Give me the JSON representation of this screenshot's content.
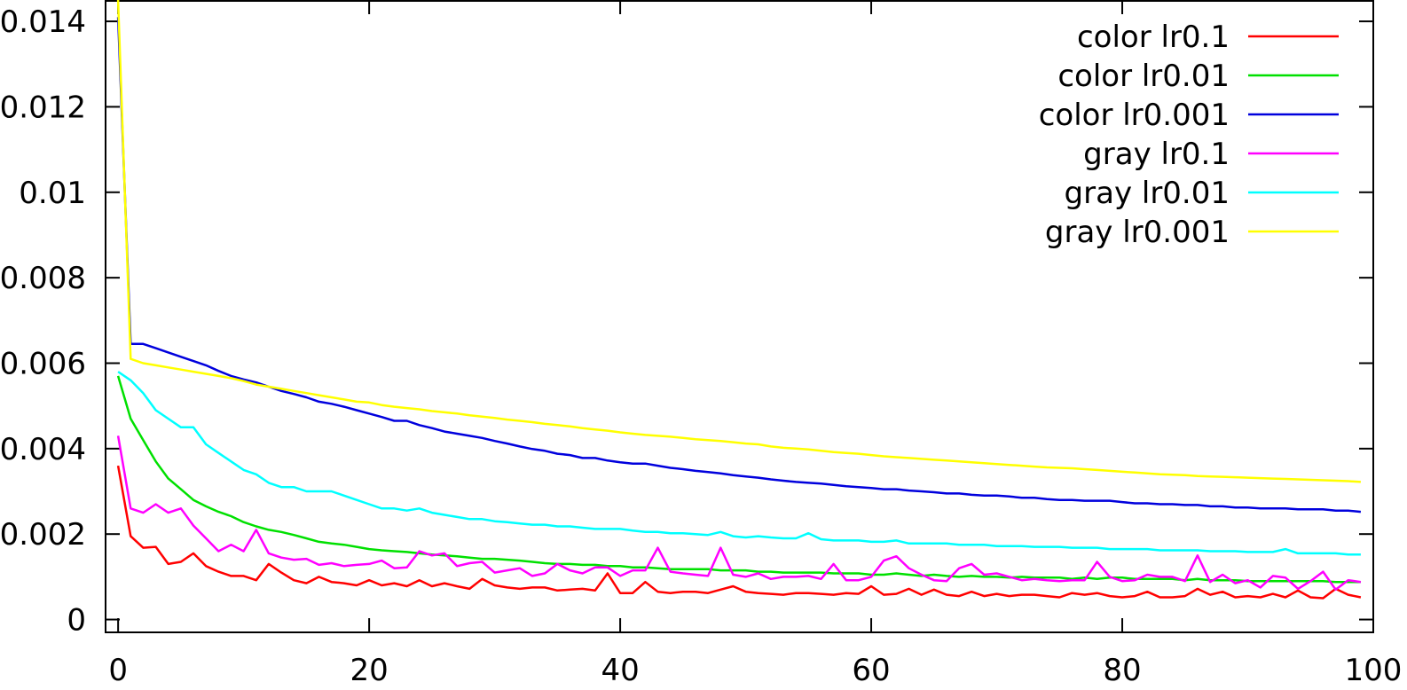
{
  "chart_data": {
    "type": "line",
    "xlim": [
      -1,
      100
    ],
    "ylim": [
      -0.0003,
      0.0145
    ],
    "xticks": [
      0,
      20,
      40,
      60,
      80,
      100
    ],
    "xtick_labels": [
      "0",
      "20",
      "40",
      "60",
      "80",
      "100"
    ],
    "yticks": [
      0,
      0.002,
      0.004,
      0.006,
      0.008,
      0.01,
      0.012,
      0.014
    ],
    "ytick_labels": [
      "0",
      "0.002",
      "0.004",
      "0.006",
      "0.008",
      "0.01",
      "0.012",
      "0.014"
    ],
    "grid": false,
    "legend_position": "top-right",
    "x": [
      0,
      1,
      2,
      3,
      4,
      5,
      6,
      7,
      8,
      9,
      10,
      11,
      12,
      13,
      14,
      15,
      16,
      17,
      18,
      19,
      20,
      21,
      22,
      23,
      24,
      25,
      26,
      27,
      28,
      29,
      30,
      31,
      32,
      33,
      34,
      35,
      36,
      37,
      38,
      39,
      40,
      41,
      42,
      43,
      44,
      45,
      46,
      47,
      48,
      49,
      50,
      51,
      52,
      53,
      54,
      55,
      56,
      57,
      58,
      59,
      60,
      61,
      62,
      63,
      64,
      65,
      66,
      67,
      68,
      69,
      70,
      71,
      72,
      73,
      74,
      75,
      76,
      77,
      78,
      79,
      80,
      81,
      82,
      83,
      84,
      85,
      86,
      87,
      88,
      89,
      90,
      91,
      92,
      93,
      94,
      95,
      96,
      97,
      98,
      99
    ],
    "series": [
      {
        "name": "color lr0.1",
        "color": "#ff0000",
        "values": [
          0.0036,
          0.00195,
          0.00168,
          0.0017,
          0.0013,
          0.00135,
          0.00155,
          0.00125,
          0.00112,
          0.00102,
          0.00102,
          0.00092,
          0.0013,
          0.0011,
          0.00092,
          0.00085,
          0.001,
          0.00088,
          0.00085,
          0.0008,
          0.00092,
          0.0008,
          0.00085,
          0.00078,
          0.00092,
          0.00078,
          0.00085,
          0.00078,
          0.00072,
          0.00095,
          0.0008,
          0.00075,
          0.00072,
          0.00075,
          0.00075,
          0.00068,
          0.0007,
          0.00072,
          0.00068,
          0.00108,
          0.00062,
          0.00062,
          0.00088,
          0.00065,
          0.00062,
          0.00065,
          0.00065,
          0.00062,
          0.0007,
          0.00078,
          0.00065,
          0.00062,
          0.0006,
          0.00058,
          0.00062,
          0.00062,
          0.0006,
          0.00058,
          0.00062,
          0.0006,
          0.00078,
          0.00058,
          0.0006,
          0.00072,
          0.00058,
          0.0007,
          0.00058,
          0.00055,
          0.00065,
          0.00055,
          0.0006,
          0.00055,
          0.00058,
          0.00058,
          0.00055,
          0.00052,
          0.00062,
          0.00058,
          0.00062,
          0.00055,
          0.00052,
          0.00055,
          0.00065,
          0.00052,
          0.00052,
          0.00055,
          0.00072,
          0.00058,
          0.00065,
          0.00052,
          0.00055,
          0.00052,
          0.0006,
          0.00052,
          0.00068,
          0.00052,
          0.0005,
          0.00072,
          0.00058,
          0.00052
        ]
      },
      {
        "name": "color lr0.01",
        "color": "#00e000",
        "values": [
          0.0057,
          0.0047,
          0.0042,
          0.0037,
          0.0033,
          0.00305,
          0.0028,
          0.00265,
          0.00252,
          0.00242,
          0.00228,
          0.00218,
          0.0021,
          0.00205,
          0.00198,
          0.0019,
          0.00182,
          0.00178,
          0.00175,
          0.0017,
          0.00165,
          0.00162,
          0.0016,
          0.00158,
          0.00155,
          0.00152,
          0.0015,
          0.00148,
          0.00145,
          0.00142,
          0.00142,
          0.0014,
          0.00138,
          0.00135,
          0.00132,
          0.0013,
          0.0013,
          0.00128,
          0.00128,
          0.00125,
          0.00125,
          0.00122,
          0.00122,
          0.0012,
          0.00118,
          0.00118,
          0.00118,
          0.00118,
          0.00115,
          0.00115,
          0.00115,
          0.00112,
          0.00112,
          0.0011,
          0.0011,
          0.0011,
          0.0011,
          0.00108,
          0.00108,
          0.00108,
          0.00105,
          0.00105,
          0.00108,
          0.00105,
          0.00102,
          0.00105,
          0.00102,
          0.001,
          0.00102,
          0.001,
          0.001,
          0.00098,
          0.001,
          0.00098,
          0.00098,
          0.00098,
          0.00095,
          0.00098,
          0.00095,
          0.00098,
          0.00098,
          0.00095,
          0.00095,
          0.00095,
          0.00095,
          0.00092,
          0.00095,
          0.00092,
          0.00092,
          0.00092,
          0.0009,
          0.0009,
          0.0009,
          0.0009,
          0.0009,
          0.0009,
          0.0009,
          0.00088,
          0.00088,
          0.00088
        ]
      },
      {
        "name": "color lr0.001",
        "color": "#0000dd",
        "values": [
          0.0141,
          0.00645,
          0.00645,
          0.00635,
          0.00625,
          0.00615,
          0.00605,
          0.00595,
          0.00582,
          0.0057,
          0.00562,
          0.00555,
          0.00545,
          0.00535,
          0.00528,
          0.0052,
          0.0051,
          0.00505,
          0.00498,
          0.0049,
          0.00482,
          0.00474,
          0.00465,
          0.00465,
          0.00455,
          0.00448,
          0.0044,
          0.00435,
          0.0043,
          0.00425,
          0.00418,
          0.00412,
          0.00405,
          0.00399,
          0.00395,
          0.00388,
          0.00385,
          0.00378,
          0.00378,
          0.00372,
          0.00368,
          0.00365,
          0.00365,
          0.0036,
          0.00355,
          0.00352,
          0.00348,
          0.00345,
          0.00342,
          0.00338,
          0.00335,
          0.00332,
          0.00328,
          0.00325,
          0.00322,
          0.0032,
          0.00318,
          0.00315,
          0.00312,
          0.0031,
          0.00308,
          0.00305,
          0.00305,
          0.00302,
          0.003,
          0.00298,
          0.00295,
          0.00295,
          0.00292,
          0.0029,
          0.0029,
          0.00288,
          0.00285,
          0.00285,
          0.00282,
          0.0028,
          0.0028,
          0.00278,
          0.00278,
          0.00278,
          0.00275,
          0.00272,
          0.00272,
          0.0027,
          0.0027,
          0.00268,
          0.00268,
          0.00265,
          0.00265,
          0.00262,
          0.00262,
          0.0026,
          0.0026,
          0.0026,
          0.00258,
          0.00258,
          0.00258,
          0.00255,
          0.00255,
          0.00252
        ]
      },
      {
        "name": "gray lr0.1",
        "color": "#ff00ff",
        "values": [
          0.0043,
          0.0026,
          0.0025,
          0.0027,
          0.0025,
          0.0026,
          0.0022,
          0.0019,
          0.0016,
          0.00175,
          0.0016,
          0.0021,
          0.00155,
          0.00145,
          0.0014,
          0.00142,
          0.00128,
          0.00132,
          0.00125,
          0.00128,
          0.0013,
          0.00138,
          0.0012,
          0.00122,
          0.0016,
          0.0015,
          0.00155,
          0.00125,
          0.00132,
          0.00135,
          0.0011,
          0.00115,
          0.0012,
          0.00102,
          0.00108,
          0.0013,
          0.00115,
          0.00108,
          0.00122,
          0.00122,
          0.00102,
          0.00115,
          0.00115,
          0.00168,
          0.00112,
          0.00108,
          0.00105,
          0.00102,
          0.00168,
          0.00105,
          0.001,
          0.00108,
          0.00095,
          0.001,
          0.001,
          0.00102,
          0.00095,
          0.0013,
          0.00092,
          0.00092,
          0.001,
          0.00138,
          0.00148,
          0.0012,
          0.00105,
          0.00092,
          0.0009,
          0.0012,
          0.0013,
          0.00105,
          0.00108,
          0.001,
          0.00092,
          0.00095,
          0.00092,
          0.0009,
          0.00092,
          0.00092,
          0.00135,
          0.001,
          0.0009,
          0.00092,
          0.00105,
          0.001,
          0.001,
          0.0009,
          0.0015,
          0.00088,
          0.00105,
          0.00085,
          0.00092,
          0.00075,
          0.00102,
          0.00098,
          0.00072,
          0.0009,
          0.00112,
          0.0007,
          0.00092,
          0.00088
        ]
      },
      {
        "name": "gray lr0.01",
        "color": "#00ffff",
        "values": [
          0.0058,
          0.0056,
          0.0053,
          0.0049,
          0.0047,
          0.0045,
          0.0045,
          0.0041,
          0.0039,
          0.0037,
          0.0035,
          0.0034,
          0.0032,
          0.0031,
          0.0031,
          0.003,
          0.003,
          0.003,
          0.0029,
          0.0028,
          0.0027,
          0.0026,
          0.0026,
          0.00255,
          0.0026,
          0.0025,
          0.00245,
          0.0024,
          0.00235,
          0.00235,
          0.0023,
          0.00228,
          0.00225,
          0.00222,
          0.00222,
          0.00218,
          0.00218,
          0.00215,
          0.00212,
          0.00212,
          0.00212,
          0.00208,
          0.00205,
          0.00205,
          0.00202,
          0.00202,
          0.002,
          0.00198,
          0.00205,
          0.00195,
          0.00192,
          0.00195,
          0.00192,
          0.0019,
          0.0019,
          0.00202,
          0.00188,
          0.00185,
          0.00185,
          0.00185,
          0.00182,
          0.00182,
          0.00185,
          0.00178,
          0.00178,
          0.00178,
          0.00178,
          0.00175,
          0.00175,
          0.00175,
          0.00172,
          0.00172,
          0.00172,
          0.0017,
          0.0017,
          0.0017,
          0.00168,
          0.00168,
          0.00168,
          0.00165,
          0.00165,
          0.00165,
          0.00165,
          0.00162,
          0.00162,
          0.00162,
          0.00162,
          0.0016,
          0.0016,
          0.0016,
          0.00158,
          0.00158,
          0.00158,
          0.00165,
          0.00155,
          0.00155,
          0.00155,
          0.00155,
          0.00152,
          0.00152
        ]
      },
      {
        "name": "gray lr0.001",
        "color": "#ffff00",
        "values": [
          0.0145,
          0.0061,
          0.006,
          0.00595,
          0.0059,
          0.00585,
          0.0058,
          0.00575,
          0.0057,
          0.00565,
          0.00558,
          0.0055,
          0.00545,
          0.0054,
          0.00535,
          0.0053,
          0.00525,
          0.0052,
          0.00515,
          0.0051,
          0.00508,
          0.00502,
          0.00498,
          0.00495,
          0.00492,
          0.00488,
          0.00485,
          0.00482,
          0.00478,
          0.00475,
          0.00472,
          0.00468,
          0.00465,
          0.00462,
          0.00458,
          0.00455,
          0.00452,
          0.00448,
          0.00445,
          0.00442,
          0.00438,
          0.00435,
          0.00432,
          0.0043,
          0.00428,
          0.00425,
          0.00422,
          0.0042,
          0.00418,
          0.00415,
          0.00412,
          0.0041,
          0.00405,
          0.00402,
          0.004,
          0.00398,
          0.00395,
          0.00392,
          0.0039,
          0.00388,
          0.00385,
          0.00382,
          0.0038,
          0.00378,
          0.00376,
          0.00374,
          0.00372,
          0.0037,
          0.00368,
          0.00366,
          0.00364,
          0.00362,
          0.0036,
          0.00358,
          0.00356,
          0.00355,
          0.00354,
          0.00352,
          0.0035,
          0.00348,
          0.00346,
          0.00344,
          0.00342,
          0.0034,
          0.00339,
          0.00338,
          0.00336,
          0.00335,
          0.00334,
          0.00333,
          0.00332,
          0.00331,
          0.0033,
          0.00329,
          0.00328,
          0.00327,
          0.00326,
          0.00325,
          0.00324,
          0.00322
        ]
      }
    ]
  }
}
